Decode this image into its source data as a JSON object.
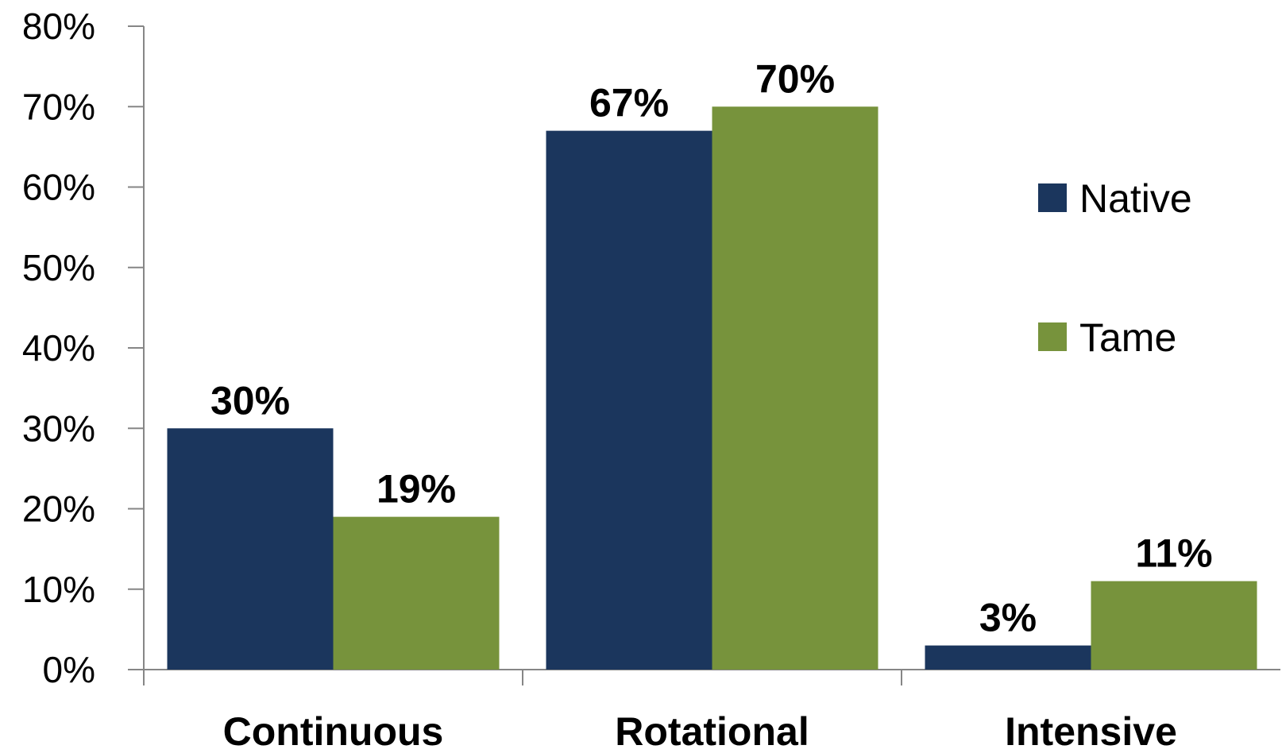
{
  "chart_data": {
    "type": "bar",
    "categories": [
      "Continuous",
      "Rotational",
      "Intensive"
    ],
    "series": [
      {
        "name": "Native",
        "values": [
          30,
          67,
          3
        ],
        "labels": [
          "30%",
          "67%",
          "3%"
        ],
        "color": "#1b365d"
      },
      {
        "name": "Tame",
        "values": [
          19,
          70,
          11
        ],
        "labels": [
          "19%",
          "70%",
          "11%"
        ],
        "color": "#77933c"
      }
    ],
    "ylim": [
      0,
      80
    ],
    "yticks": [
      "0%",
      "10%",
      "20%",
      "30%",
      "40%",
      "50%",
      "60%",
      "70%",
      "80%"
    ],
    "ytick_values": [
      0,
      10,
      20,
      30,
      40,
      50,
      60,
      70,
      80
    ],
    "grid": false,
    "legend_position": "right",
    "axis_color": "#868686"
  }
}
